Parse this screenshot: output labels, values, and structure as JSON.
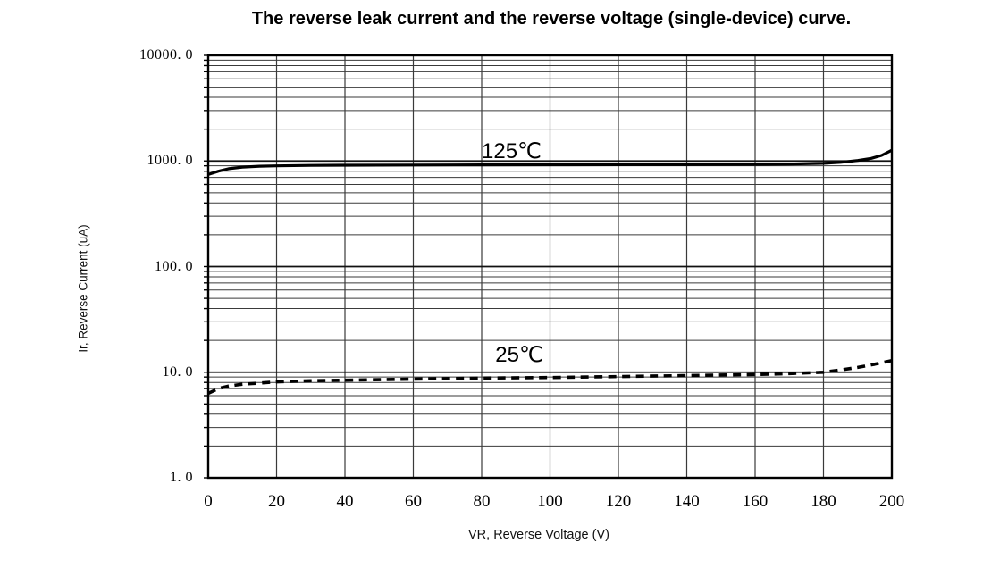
{
  "page": {
    "background": "#ffffff"
  },
  "chart_data": {
    "type": "line",
    "title": "The reverse leak current and the reverse voltage (single-device) curve.",
    "xlabel": "VR, Reverse Voltage (V)",
    "ylabel": "Ir, Reverse Current (uA)",
    "xlim": [
      0,
      200
    ],
    "ylim": [
      1,
      10000
    ],
    "y_scale": "log",
    "grid": true,
    "legend_position": "inline-annotations",
    "x_ticks": [
      0,
      20,
      40,
      60,
      80,
      100,
      120,
      140,
      160,
      180,
      200
    ],
    "x_tick_labels": [
      "0",
      "20",
      "40",
      "60",
      "80",
      "100",
      "120",
      "140",
      "160",
      "180",
      "200"
    ],
    "y_ticks": [
      10000,
      1000,
      100,
      10,
      1
    ],
    "y_tick_labels": [
      "10000. 0",
      "1000. 0",
      "100. 0",
      "10. 0",
      "1. 0"
    ],
    "series": [
      {
        "name": "125℃",
        "line_style": "solid",
        "color": "#000000",
        "points": [
          [
            0,
            745
          ],
          [
            3,
            800
          ],
          [
            6,
            845
          ],
          [
            10,
            875
          ],
          [
            15,
            893
          ],
          [
            20,
            900
          ],
          [
            30,
            908
          ],
          [
            40,
            912
          ],
          [
            60,
            916
          ],
          [
            80,
            918
          ],
          [
            100,
            920
          ],
          [
            120,
            922
          ],
          [
            140,
            925
          ],
          [
            160,
            930
          ],
          [
            170,
            935
          ],
          [
            180,
            950
          ],
          [
            185,
            970
          ],
          [
            190,
            1010
          ],
          [
            194,
            1060
          ],
          [
            197,
            1130
          ],
          [
            200,
            1265
          ]
        ]
      },
      {
        "name": "25℃",
        "line_style": "dashed",
        "color": "#000000",
        "points": [
          [
            0,
            6.3
          ],
          [
            3,
            7.0
          ],
          [
            6,
            7.4
          ],
          [
            10,
            7.7
          ],
          [
            15,
            7.9
          ],
          [
            20,
            8.1
          ],
          [
            30,
            8.3
          ],
          [
            40,
            8.4
          ],
          [
            60,
            8.6
          ],
          [
            80,
            8.8
          ],
          [
            100,
            8.9
          ],
          [
            120,
            9.1
          ],
          [
            140,
            9.3
          ],
          [
            160,
            9.5
          ],
          [
            170,
            9.7
          ],
          [
            180,
            10.0
          ],
          [
            185,
            10.5
          ],
          [
            190,
            11.1
          ],
          [
            195,
            11.9
          ],
          [
            200,
            12.9
          ]
        ]
      }
    ],
    "annotations": [
      {
        "text": "125℃",
        "x": 80,
        "y": 1650
      },
      {
        "text": "25℃",
        "x": 84,
        "y": 19.3
      }
    ],
    "colors": {
      "curves": "#000000",
      "grid_minor": "#3a3a3a",
      "grid_major": "#111111",
      "border": "#000000",
      "text": "#000000",
      "background": "#ffffff"
    }
  }
}
